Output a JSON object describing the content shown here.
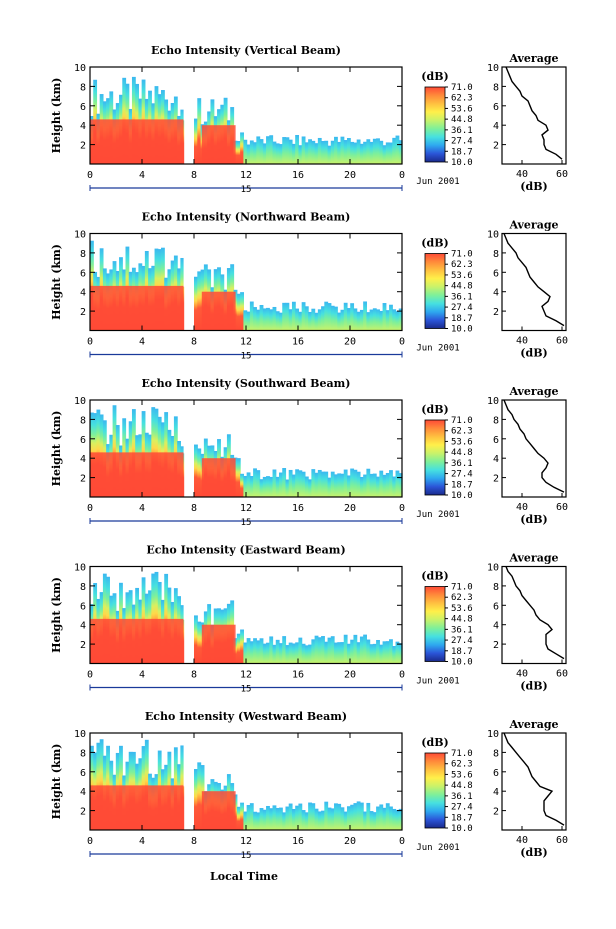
{
  "figure": {
    "xlabel": "Local Time",
    "date_label": "Jun 2001",
    "day_label": "15"
  },
  "colorbar": {
    "unit": "(dB)",
    "ticks": [
      "71.0",
      "62.3",
      "53.6",
      "44.8",
      "36.1",
      "27.4",
      "18.7",
      "10.0"
    ],
    "range": [
      10.0,
      71.0
    ],
    "colormap": [
      "#1a2a8c",
      "#2b55d8",
      "#2ea8ef",
      "#46e0e0",
      "#7ef09a",
      "#c9f26a",
      "#fff04a",
      "#ffc040",
      "#ff8a3a",
      "#ff4a36"
    ]
  },
  "chart_data": [
    {
      "type": "heatmap",
      "title": "Echo Intensity (Vertical Beam)",
      "ylabel": "Height (km)",
      "xlim": [
        0,
        24
      ],
      "ylim": [
        0,
        10
      ],
      "xticks": [
        "0",
        "4",
        "8",
        "12",
        "16",
        "20",
        "0"
      ],
      "yticks": [
        "2",
        "4",
        "6",
        "8",
        "10"
      ],
      "segments": [
        {
          "x": [
            0,
            7.2
          ],
          "core_top_km": 4.6,
          "cloud_top_km": 9.0,
          "peak_dB": 71.0
        },
        {
          "x": [
            8,
            11.8
          ],
          "core_top_km": 4.0,
          "cloud_top_km": 7.0,
          "peak_dB": 71.0
        },
        {
          "x": [
            11.8,
            24
          ],
          "core_top_km": 0.8,
          "cloud_top_km": 3.0,
          "peak_dB": 40.0
        }
      ],
      "average": {
        "title": "Average",
        "xlabel": "(dB)",
        "xticks": [
          "40",
          "60"
        ],
        "xlim": [
          30,
          62
        ],
        "yticks": [
          "2",
          "4",
          "6",
          "8",
          "10"
        ],
        "profile": {
          "height": [
            0.5,
            1,
            1.5,
            2,
            2.5,
            3,
            3.5,
            4,
            4.5,
            5,
            5.5,
            6,
            6.5,
            7,
            7.5,
            8,
            8.5,
            9,
            9.5,
            10
          ],
          "dB": [
            60,
            57,
            52,
            51,
            51,
            50,
            53,
            52,
            48,
            47,
            45,
            44,
            43,
            40,
            39,
            37,
            35,
            34,
            33,
            32
          ]
        }
      }
    },
    {
      "type": "heatmap",
      "title": "Echo Intensity (Northward Beam)",
      "ylabel": "Height (km)",
      "xlim": [
        0,
        24
      ],
      "ylim": [
        0,
        10
      ],
      "xticks": [
        "0",
        "4",
        "8",
        "12",
        "16",
        "20",
        "0"
      ],
      "yticks": [
        "2",
        "4",
        "6",
        "8",
        "10"
      ],
      "segments": [
        {
          "x": [
            0,
            7.2
          ],
          "core_top_km": 4.6,
          "cloud_top_km": 9.5,
          "peak_dB": 71.0
        },
        {
          "x": [
            8,
            11.8
          ],
          "core_top_km": 4.0,
          "cloud_top_km": 7.0,
          "peak_dB": 71.0
        },
        {
          "x": [
            11.8,
            24
          ],
          "core_top_km": 0.8,
          "cloud_top_km": 3.0,
          "peak_dB": 40.0
        }
      ],
      "average": {
        "title": "Average",
        "xlabel": "(dB)",
        "xticks": [
          "40",
          "60"
        ],
        "xlim": [
          30,
          62
        ],
        "yticks": [
          "2",
          "4",
          "6",
          "8",
          "10"
        ],
        "profile": {
          "height": [
            0.5,
            1,
            1.5,
            2,
            2.5,
            3,
            3.5,
            4,
            4.5,
            5,
            5.5,
            6,
            6.5,
            7,
            7.5,
            8,
            8.5,
            9,
            9.5,
            10
          ],
          "dB": [
            61,
            57,
            52,
            51,
            50,
            53,
            54,
            51,
            48,
            46,
            44,
            43,
            42,
            40,
            38,
            37,
            35,
            33,
            32,
            31
          ]
        }
      }
    },
    {
      "type": "heatmap",
      "title": "Echo Intensity (Southward Beam)",
      "ylabel": "Height (km)",
      "xlim": [
        0,
        24
      ],
      "ylim": [
        0,
        10
      ],
      "xticks": [
        "0",
        "4",
        "8",
        "12",
        "16",
        "20",
        "0"
      ],
      "yticks": [
        "2",
        "4",
        "6",
        "8",
        "10"
      ],
      "segments": [
        {
          "x": [
            0,
            7.2
          ],
          "core_top_km": 4.6,
          "cloud_top_km": 9.5,
          "peak_dB": 71.0
        },
        {
          "x": [
            8,
            11.8
          ],
          "core_top_km": 4.0,
          "cloud_top_km": 7.0,
          "peak_dB": 71.0
        },
        {
          "x": [
            11.8,
            24
          ],
          "core_top_km": 0.8,
          "cloud_top_km": 3.0,
          "peak_dB": 40.0
        }
      ],
      "average": {
        "title": "Average",
        "xlabel": "(dB)",
        "xticks": [
          "40",
          "60"
        ],
        "xlim": [
          30,
          62
        ],
        "yticks": [
          "2",
          "4",
          "6",
          "8",
          "10"
        ],
        "profile": {
          "height": [
            0.5,
            1,
            1.5,
            2,
            2.5,
            3,
            3.5,
            4,
            4.5,
            5,
            5.5,
            6,
            6.5,
            7,
            7.5,
            8,
            8.5,
            9,
            9.5,
            10
          ],
          "dB": [
            61,
            56,
            52,
            50,
            50,
            52,
            53,
            51,
            48,
            46,
            44,
            42,
            41,
            39,
            38,
            36,
            35,
            33,
            32,
            31
          ]
        }
      }
    },
    {
      "type": "heatmap",
      "title": "Echo Intensity (Eastward Beam)",
      "ylabel": "Height (km)",
      "xlim": [
        0,
        24
      ],
      "ylim": [
        0,
        10
      ],
      "xticks": [
        "0",
        "4",
        "8",
        "12",
        "16",
        "20",
        "0"
      ],
      "yticks": [
        "2",
        "4",
        "6",
        "8",
        "10"
      ],
      "segments": [
        {
          "x": [
            0,
            7.2
          ],
          "core_top_km": 4.6,
          "cloud_top_km": 9.5,
          "peak_dB": 71.0
        },
        {
          "x": [
            8,
            11.8
          ],
          "core_top_km": 4.0,
          "cloud_top_km": 7.0,
          "peak_dB": 71.0
        },
        {
          "x": [
            11.8,
            24
          ],
          "core_top_km": 0.8,
          "cloud_top_km": 3.0,
          "peak_dB": 40.0
        }
      ],
      "average": {
        "title": "Average",
        "xlabel": "(dB)",
        "xticks": [
          "40",
          "60"
        ],
        "xlim": [
          30,
          62
        ],
        "yticks": [
          "2",
          "4",
          "6",
          "8",
          "10"
        ],
        "profile": {
          "height": [
            0.5,
            1,
            1.5,
            2,
            2.5,
            3,
            3.5,
            4,
            4.5,
            5,
            5.5,
            6,
            6.5,
            7,
            7.5,
            8,
            8.5,
            9,
            9.5,
            10
          ],
          "dB": [
            61,
            57,
            53,
            52,
            52,
            52,
            55,
            53,
            49,
            47,
            46,
            44,
            42,
            40,
            39,
            37,
            36,
            35,
            33,
            32
          ]
        }
      }
    },
    {
      "type": "heatmap",
      "title": "Echo Intensity (Westward Beam)",
      "ylabel": "Height (km)",
      "xlim": [
        0,
        24
      ],
      "ylim": [
        0,
        10
      ],
      "xticks": [
        "0",
        "4",
        "8",
        "12",
        "16",
        "20",
        "0"
      ],
      "yticks": [
        "2",
        "4",
        "6",
        "8",
        "10"
      ],
      "segments": [
        {
          "x": [
            0,
            7.2
          ],
          "core_top_km": 4.6,
          "cloud_top_km": 9.5,
          "peak_dB": 71.0
        },
        {
          "x": [
            8,
            11.8
          ],
          "core_top_km": 4.0,
          "cloud_top_km": 7.0,
          "peak_dB": 71.0
        },
        {
          "x": [
            11.8,
            24
          ],
          "core_top_km": 0.8,
          "cloud_top_km": 3.0,
          "peak_dB": 40.0
        }
      ],
      "average": {
        "title": "Average",
        "xlabel": "(dB)",
        "xticks": [
          "40",
          "60"
        ],
        "xlim": [
          30,
          62
        ],
        "yticks": [
          "2",
          "4",
          "6",
          "8",
          "10"
        ],
        "profile": {
          "height": [
            0.5,
            1,
            1.5,
            2,
            2.5,
            3,
            3.5,
            4,
            4.5,
            5,
            5.5,
            6,
            6.5,
            7,
            7.5,
            8,
            8.5,
            9,
            9.5,
            10
          ],
          "dB": [
            61,
            57,
            52,
            51,
            51,
            51,
            53,
            55,
            49,
            47,
            45,
            44,
            43,
            41,
            39,
            37,
            35,
            33,
            32,
            31
          ]
        }
      }
    }
  ]
}
